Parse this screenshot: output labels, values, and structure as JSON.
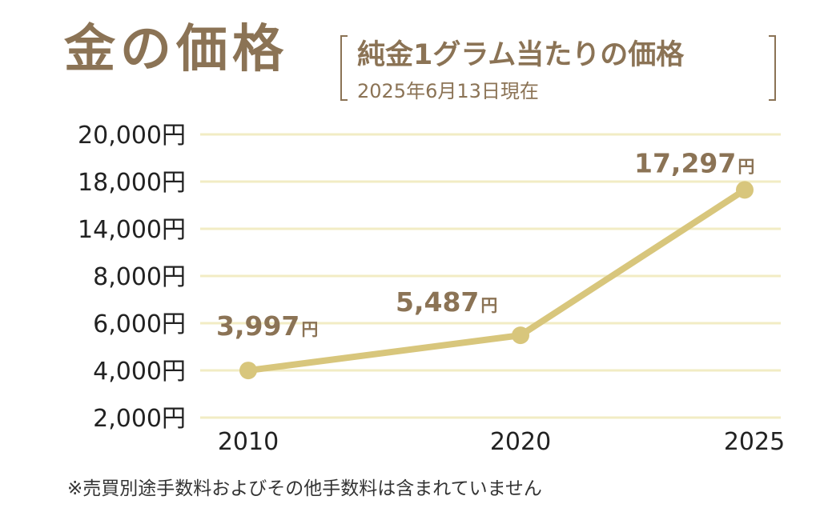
{
  "header": {
    "title": "金の価格",
    "subtitle": "純金1グラム当たりの価格",
    "date": "2025年6月13日現在"
  },
  "footnote": "※売買別途手数料およびその他手数料は含まれていません",
  "colors": {
    "accent": "#8b7355",
    "line": "#d8c67c",
    "grid": "#f2ecc4",
    "tick_text": "#222222"
  },
  "chart_data": {
    "type": "line",
    "title": "金の価格",
    "subtitle": "純金1グラム当たりの価格",
    "xlabel": "",
    "ylabel": "",
    "y_scale": "categorical (unevenly spaced tick labels)",
    "y_ticks": [
      "20,000円",
      "18,000円",
      "14,000円",
      "8,000円",
      "6,000円",
      "4,000円",
      "2,000円"
    ],
    "x_ticks": [
      "2010",
      "2020",
      "2025"
    ],
    "series": [
      {
        "name": "純金1グラム当たりの価格",
        "unit": "円",
        "points": [
          {
            "x": "2010",
            "value": 3997,
            "label_number": "3,997",
            "label_unit": "円"
          },
          {
            "x": "2020",
            "value": 5487,
            "label_number": "5,487",
            "label_unit": "円"
          },
          {
            "x": "2025",
            "value": 17297,
            "label_number": "17,297",
            "label_unit": "円"
          }
        ]
      }
    ]
  }
}
